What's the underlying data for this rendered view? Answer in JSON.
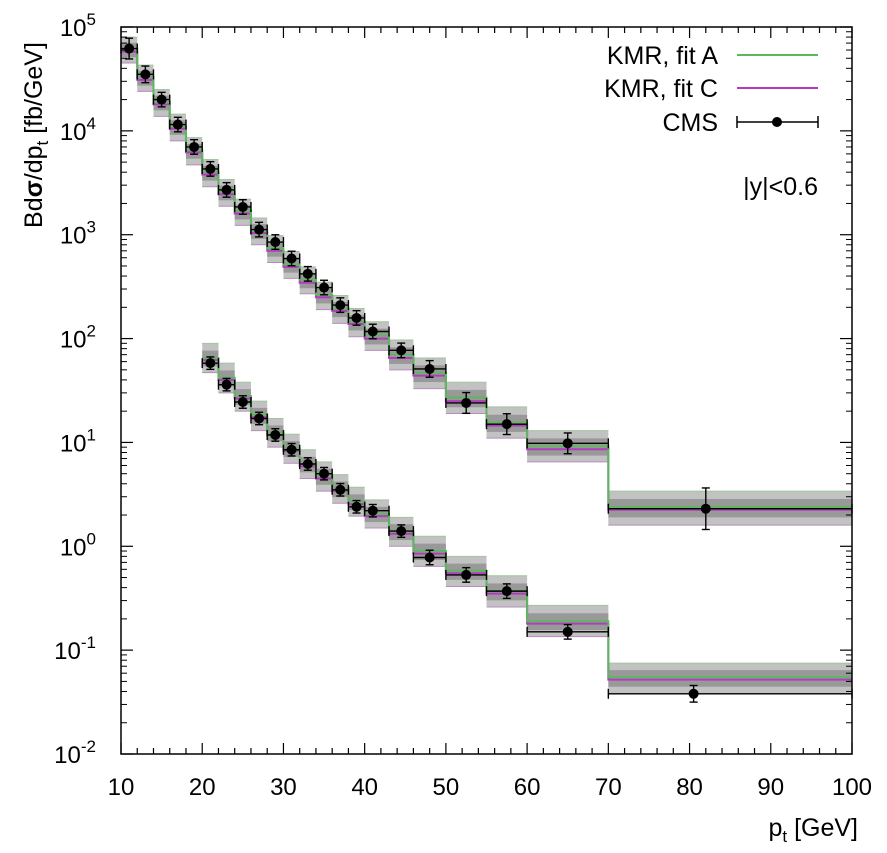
{
  "chart_data": {
    "type": "line",
    "title": "",
    "xlabel": "p",
    "xlabel_sub": "t",
    "xlabel_unit": " [GeV]",
    "ylabel_main": "Bd",
    "ylabel_sigma": "σ",
    "ylabel_mid": "/dp",
    "ylabel_sub": "t",
    "ylabel_unit": " [fb/GeV]",
    "xlim": [
      10,
      100
    ],
    "ylim_log10": [
      -2,
      5
    ],
    "x_ticks": [
      "10",
      "20",
      "30",
      "40",
      "50",
      "60",
      "70",
      "80",
      "90",
      "100"
    ],
    "y_ticks": [
      {
        "base": "10",
        "exp": "-2"
      },
      {
        "base": "10",
        "exp": "-1"
      },
      {
        "base": "10",
        "exp": "0"
      },
      {
        "base": "10",
        "exp": "1"
      },
      {
        "base": "10",
        "exp": "2"
      },
      {
        "base": "10",
        "exp": "3"
      },
      {
        "base": "10",
        "exp": "4"
      },
      {
        "base": "10",
        "exp": "5"
      }
    ],
    "annotation": "|y|<0.6",
    "legend": [
      {
        "label": "KMR, fit A",
        "color": "#5cb85c",
        "kind": "line"
      },
      {
        "label": "KMR, fit C",
        "color": "#b43bc0",
        "kind": "line"
      },
      {
        "label": "CMS",
        "color": "#000000",
        "kind": "errorbar"
      }
    ],
    "series": [
      {
        "name": "upper",
        "bin_edges": [
          10,
          12,
          14,
          16,
          18,
          20,
          22,
          24,
          26,
          28,
          30,
          32,
          34,
          36,
          38,
          40,
          43,
          46,
          50,
          55,
          60,
          70,
          100
        ],
        "fit_A": [
          62000,
          33000,
          19000,
          11000,
          6500,
          4000,
          2600,
          1700,
          1100,
          740,
          520,
          370,
          265,
          195,
          145,
          107,
          70,
          47,
          27,
          15.5,
          9.2,
          2.4
        ],
        "fit_C": [
          58000,
          31000,
          18000,
          10500,
          6200,
          3800,
          2450,
          1600,
          1040,
          700,
          490,
          345,
          250,
          185,
          138,
          100,
          65,
          44,
          25,
          14.5,
          8.6,
          2.25
        ],
        "band_upper": [
          80000,
          43000,
          25000,
          14500,
          8600,
          5300,
          3400,
          2200,
          1450,
          980,
          690,
          490,
          350,
          260,
          195,
          145,
          97,
          65,
          38,
          22,
          13,
          3.4
        ],
        "band_lower": [
          45000,
          24000,
          13800,
          8000,
          4700,
          2900,
          1880,
          1230,
          800,
          540,
          380,
          270,
          190,
          140,
          104,
          77,
          50,
          33,
          19,
          11,
          6.5,
          1.6
        ],
        "cms_x": [
          11,
          13,
          15,
          17,
          19,
          21,
          23,
          25,
          27,
          29,
          31,
          33,
          35,
          37,
          39,
          41,
          44.5,
          48,
          52.5,
          57.5,
          65,
          82
        ],
        "cms_y": [
          62000,
          35000,
          20000,
          11500,
          7000,
          4300,
          2700,
          1850,
          1120,
          850,
          590,
          420,
          310,
          210,
          158,
          117,
          77,
          51,
          24,
          15,
          9.8,
          2.3
        ],
        "cms_err": [
          0.1,
          0.08,
          0.07,
          0.07,
          0.07,
          0.07,
          0.07,
          0.07,
          0.07,
          0.07,
          0.07,
          0.07,
          0.07,
          0.07,
          0.07,
          0.07,
          0.07,
          0.08,
          0.1,
          0.1,
          0.1,
          0.2
        ]
      },
      {
        "name": "lower",
        "bin_edges": [
          20,
          22,
          24,
          26,
          28,
          30,
          32,
          34,
          36,
          38,
          40,
          43,
          46,
          50,
          55,
          60,
          70,
          100
        ],
        "fit_A": [
          65,
          42,
          28,
          18.5,
          12.5,
          8.8,
          6.2,
          4.8,
          3.6,
          2.7,
          2.05,
          1.4,
          0.9,
          0.58,
          0.37,
          0.19,
          0.055
        ],
        "fit_C": [
          62,
          40,
          26.5,
          17.5,
          11.8,
          8.3,
          5.9,
          4.5,
          3.4,
          2.55,
          1.95,
          1.32,
          0.85,
          0.55,
          0.35,
          0.18,
          0.052
        ],
        "band_upper": [
          90,
          58,
          38,
          25,
          17,
          12,
          8.5,
          6.5,
          4.9,
          3.7,
          2.8,
          1.9,
          1.25,
          0.8,
          0.52,
          0.27,
          0.075
        ],
        "band_lower": [
          47,
          30,
          20,
          13,
          9,
          6.3,
          4.5,
          3.4,
          2.6,
          1.95,
          1.5,
          1.0,
          0.64,
          0.41,
          0.26,
          0.135,
          0.038
        ],
        "cms_x": [
          21,
          23,
          25,
          27,
          29,
          31,
          33,
          35,
          37,
          39,
          41,
          44.5,
          48,
          52.5,
          57.5,
          65,
          80.5
        ],
        "cms_y": [
          58,
          36,
          24.5,
          17,
          11.8,
          8.5,
          6.2,
          5.0,
          3.5,
          2.4,
          2.2,
          1.4,
          0.78,
          0.53,
          0.37,
          0.15,
          0.038
        ],
        "cms_err": [
          0.06,
          0.06,
          0.06,
          0.06,
          0.06,
          0.06,
          0.06,
          0.06,
          0.06,
          0.06,
          0.06,
          0.06,
          0.07,
          0.07,
          0.07,
          0.07,
          0.08
        ]
      }
    ]
  }
}
